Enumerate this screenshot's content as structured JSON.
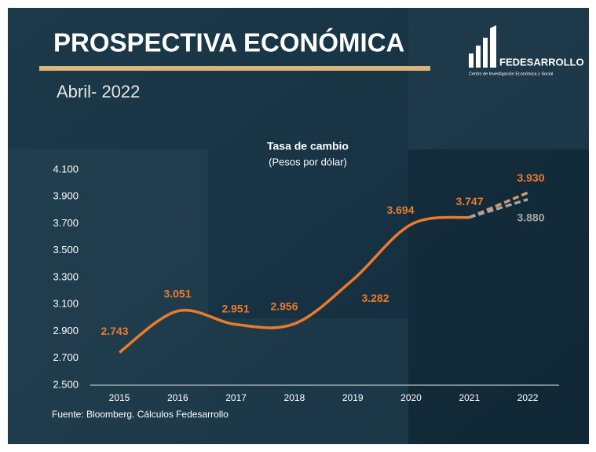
{
  "header": {
    "title": "PROSPECTIVA ECONÓMICA",
    "date": "Abril- 2022",
    "logo": "FEDESARROLLO",
    "logo_subtitle": "Centro de Investigación Económica y Social"
  },
  "chart_data": {
    "type": "line",
    "title": "Tasa de cambio",
    "subtitle": "(Pesos por dólar)",
    "categories": [
      "2015",
      "2016",
      "2017",
      "2018",
      "2019",
      "2020",
      "2021",
      "2022"
    ],
    "series": [
      {
        "color": "#ec7a2c",
        "values": [
          2743,
          3051,
          2951,
          2956,
          3282,
          3694,
          3747,
          null
        ],
        "value_labels": [
          "2.743",
          "3.051",
          "2.951",
          "2.956",
          "3.282",
          "3.694",
          "3.747",
          null
        ]
      },
      {
        "color": "#d79866",
        "dashed": true,
        "values": [
          null,
          null,
          null,
          null,
          null,
          null,
          null,
          3930
        ],
        "value_labels": [
          null,
          null,
          null,
          null,
          null,
          null,
          null,
          "3.930"
        ]
      },
      {
        "color": "#a8a39c",
        "dashed": true,
        "values": [
          null,
          null,
          null,
          null,
          null,
          null,
          null,
          3880
        ],
        "value_labels": [
          null,
          null,
          null,
          null,
          null,
          null,
          null,
          "3.880"
        ]
      }
    ],
    "ylim": [
      2500,
      4100
    ],
    "yticks": [
      {
        "value": 2500,
        "label": "2.500"
      },
      {
        "value": 2700,
        "label": "2.700"
      },
      {
        "value": 2900,
        "label": "2.900"
      },
      {
        "value": 3100,
        "label": "3.100"
      },
      {
        "value": 3300,
        "label": "3.300"
      },
      {
        "value": 3500,
        "label": "3.500"
      },
      {
        "value": 3700,
        "label": "3.700"
      },
      {
        "value": 3900,
        "label": "3.900"
      },
      {
        "value": 4100,
        "label": "4.100"
      }
    ],
    "grid": false,
    "source": "Fuente: Bloomberg. Cálculos Fedesarrollo"
  }
}
